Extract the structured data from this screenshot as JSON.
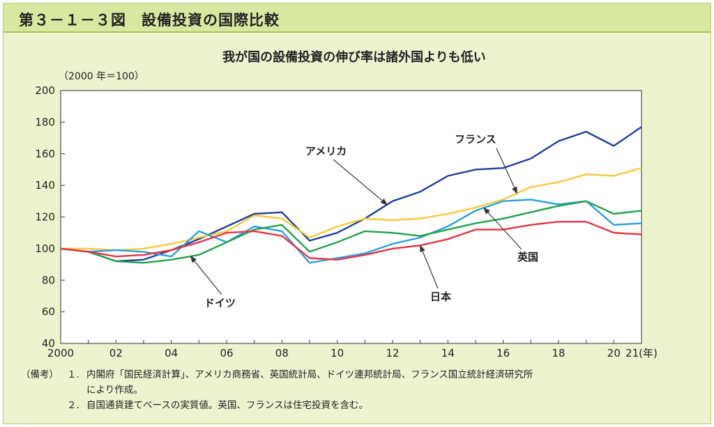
{
  "header": {
    "title": "第３－１－３図　設備投資の国際比較"
  },
  "chart_data": {
    "type": "line",
    "title": "我が国の設備投資の伸び率は諸外国よりも低い",
    "unit_label": "（2000 年＝100）",
    "x": [
      2000,
      2001,
      2002,
      2003,
      2004,
      2005,
      2006,
      2007,
      2008,
      2009,
      2010,
      2011,
      2012,
      2013,
      2014,
      2015,
      2016,
      2017,
      2018,
      2019,
      2020,
      2021
    ],
    "x_tick_labels": [
      {
        "x": 2000,
        "label": "2000"
      },
      {
        "x": 2002,
        "label": "02"
      },
      {
        "x": 2004,
        "label": "04"
      },
      {
        "x": 2006,
        "label": "06"
      },
      {
        "x": 2008,
        "label": "08"
      },
      {
        "x": 2010,
        "label": "10"
      },
      {
        "x": 2012,
        "label": "12"
      },
      {
        "x": 2014,
        "label": "14"
      },
      {
        "x": 2016,
        "label": "16"
      },
      {
        "x": 2018,
        "label": "18"
      },
      {
        "x": 2020,
        "label": "20"
      },
      {
        "x": 2021,
        "label": "21(年)"
      }
    ],
    "ylim": [
      40,
      200
    ],
    "y_ticks": [
      40,
      60,
      80,
      100,
      120,
      140,
      160,
      180,
      200
    ],
    "grid": false,
    "series": [
      {
        "name": "アメリカ",
        "color": "#1f3f9a",
        "values": [
          100,
          98,
          92,
          93,
          99,
          106,
          114,
          122,
          123,
          105,
          110,
          119,
          130,
          136,
          146,
          150,
          151,
          157,
          168,
          174,
          165,
          177
        ]
      },
      {
        "name": "フランス",
        "color": "#f7c93c",
        "values": [
          100,
          100,
          99,
          100,
          103,
          107,
          111,
          121,
          119,
          107,
          114,
          119,
          118,
          119,
          122,
          126,
          131,
          139,
          142,
          147,
          146,
          151
        ]
      },
      {
        "name": "英国",
        "color": "#2aa0dc",
        "values": [
          100,
          98,
          99,
          98,
          95,
          111,
          104,
          114,
          111,
          91,
          94,
          97,
          103,
          107,
          114,
          124,
          130,
          131,
          128,
          130,
          115,
          116
        ]
      },
      {
        "name": "ドイツ",
        "color": "#23a04a",
        "values": [
          100,
          98,
          92,
          91,
          93,
          96,
          104,
          112,
          115,
          98,
          104,
          111,
          110,
          108,
          112,
          116,
          119,
          123,
          127,
          130,
          122,
          124
        ]
      },
      {
        "name": "日本",
        "color": "#e53346",
        "values": [
          100,
          98,
          95,
          96,
          99,
          104,
          110,
          111,
          108,
          94,
          93,
          96,
          100,
          102,
          106,
          112,
          112,
          115,
          117,
          117,
          110,
          109
        ]
      }
    ],
    "annotations": [
      {
        "text": "アメリカ",
        "series": "アメリカ",
        "x": 2011.8
      },
      {
        "text": "フランス",
        "series": "フランス",
        "x": 2016.5
      },
      {
        "text": "英国",
        "series": "英国",
        "x": 2015.3
      },
      {
        "text": "ドイツ",
        "series": "ドイツ",
        "x": 2004.7
      },
      {
        "text": "日本",
        "series": "日本",
        "x": 2013.0
      }
    ]
  },
  "notes": {
    "label": "（備考）",
    "items": [
      {
        "num": "１.",
        "line1": "内閣府「国民経済計算」、アメリカ商務省、英国統計局、ドイツ連邦統計局、フランス国立統計経済研究所",
        "line2": "により作成。"
      },
      {
        "num": "２.",
        "line1": "自国通貨建てベースの実質値。英国、フランスは住宅投資を含む。",
        "line2": ""
      }
    ]
  }
}
